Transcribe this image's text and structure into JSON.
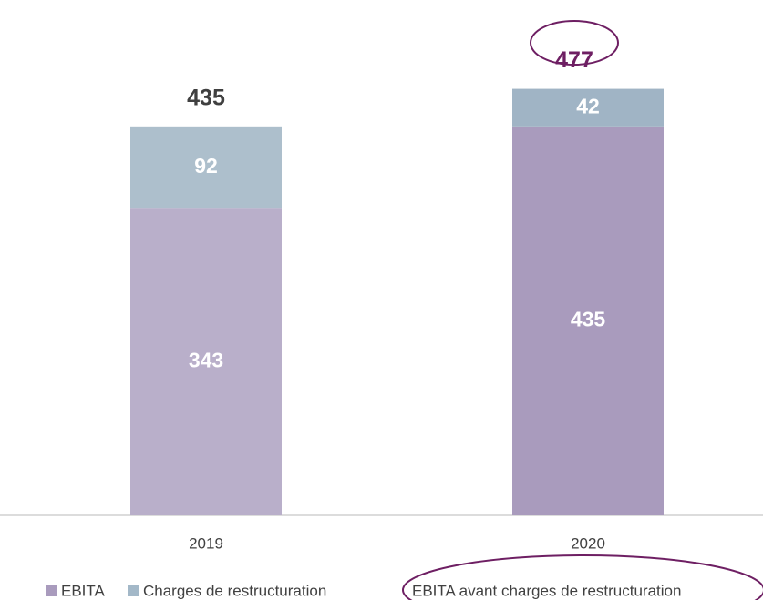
{
  "chart_data": {
    "type": "stacked_bar",
    "categories": [
      "2019",
      "2020"
    ],
    "series": [
      {
        "name": "EBITA",
        "color": "#a99bbd",
        "colors": [
          "#b9afca",
          "#a99bbd"
        ],
        "values": [
          343,
          435
        ]
      },
      {
        "name": "Charges de restructuration",
        "color": "#a3b8c8",
        "colors": [
          "#adbfcc",
          "#a0b4c5"
        ],
        "values": [
          92,
          42
        ]
      }
    ],
    "totals": [
      435,
      477
    ],
    "totals_colors": [
      "#404040",
      "#6e1f63"
    ],
    "annotation": "EBITA avant charges de restructuration",
    "ylim": [
      0,
      500
    ]
  }
}
